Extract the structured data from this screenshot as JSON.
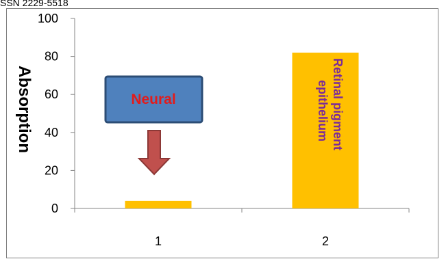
{
  "header": {
    "issn": "SSN 2229-5518"
  },
  "chart_data": {
    "type": "bar",
    "categories": [
      "1",
      "2"
    ],
    "values": [
      4,
      82
    ],
    "ylabel": "Absorption",
    "xlabel": "",
    "ylim": [
      0,
      100
    ],
    "yticks": [
      0,
      20,
      40,
      60,
      80,
      100
    ],
    "grid": false,
    "bar_color": "#ffc000",
    "annotations": {
      "neural": "Neural",
      "rpe_line1": "Retinal pigment",
      "rpe_line2": "epithelium"
    }
  },
  "colors": {
    "box_fill": "#4f81bd",
    "box_stroke": "#2c4d75",
    "arrow_fill": "#c0504d",
    "arrow_stroke": "#8c3836",
    "neural_text": "#e31b1b",
    "rpe_text": "#7a2a9a"
  }
}
